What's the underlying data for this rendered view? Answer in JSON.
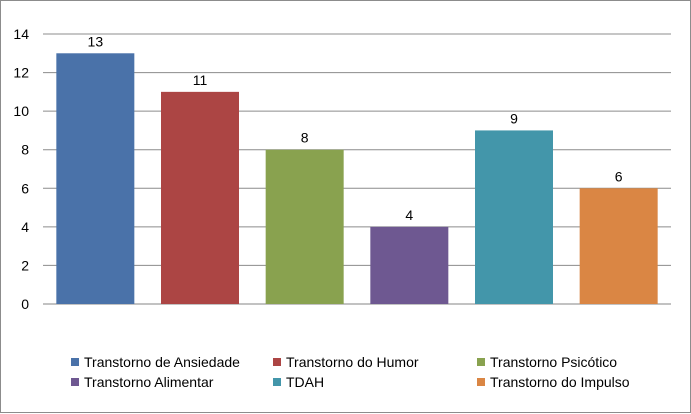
{
  "chart_data": {
    "type": "bar",
    "categories": [
      "Transtorno de Ansiedade",
      "Transtorno do Humor",
      "Transtorno Psicótico",
      "Transtorno Alimentar",
      "TDAH",
      "Transtorno do Impulso"
    ],
    "values": [
      13,
      11,
      8,
      4,
      9,
      6
    ],
    "data_labels": [
      "13",
      "11",
      "8",
      "4",
      "9",
      "6"
    ],
    "colors": [
      "#4a72a9",
      "#ac4544",
      "#89a24f",
      "#6e5891",
      "#4396aa",
      "#da8644"
    ],
    "ylim": [
      0,
      14
    ],
    "yticks": [
      0,
      2,
      4,
      6,
      8,
      10,
      12,
      14
    ],
    "ytick_labels": [
      "0",
      "2",
      "4",
      "6",
      "8",
      "10",
      "12",
      "14"
    ],
    "grid": true,
    "legend_position": "bottom",
    "title": "",
    "xlabel": "",
    "ylabel": ""
  }
}
